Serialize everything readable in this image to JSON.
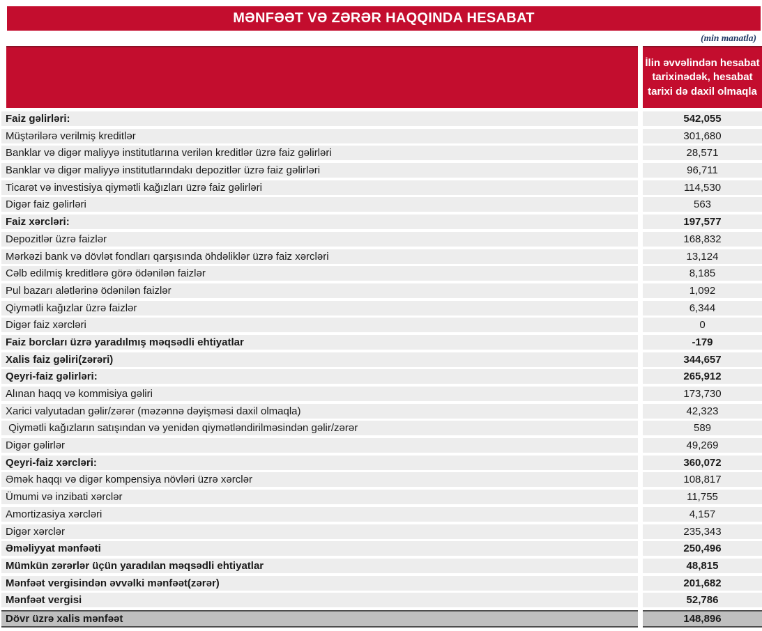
{
  "title": "MƏNFƏƏT VƏ ZƏRƏR HAQQINDA HESABAT",
  "unit_note": "(min manatla)",
  "colors": {
    "accent": "#c30d2e",
    "accent_dark": "#8c1127",
    "row_bg": "#ededed",
    "total_bg": "#bfbfbf",
    "note_color": "#1f3864"
  },
  "table": {
    "value_header": "İlin əvvəlindən hesabat tarixinədək, hesabat tarixi də daxil olmaqla",
    "rows": [
      {
        "label": "Faiz gəlirləri:",
        "value": "542,055",
        "bold": true
      },
      {
        "label": "Müştərilərə verilmiş kreditlər",
        "value": "301,680",
        "bold": false
      },
      {
        "label": "Banklar və digər maliyyə institutlarına verilən kreditlər üzrə faiz gəlirləri",
        "value": "28,571",
        "bold": false
      },
      {
        "label": "Banklar və digər maliyyə institutlarındakı depozitlər üzrə faiz gəlirləri",
        "value": "96,711",
        "bold": false
      },
      {
        "label": "Ticarət və investisiya qiymətli kağızları üzrə faiz gəlirləri",
        "value": "114,530",
        "bold": false
      },
      {
        "label": "Digər faiz gəlirləri",
        "value": "563",
        "bold": false
      },
      {
        "label": "Faiz xərcləri:",
        "value": "197,577",
        "bold": true
      },
      {
        "label": "Depozitlər üzrə faizlər",
        "value": "168,832",
        "bold": false
      },
      {
        "label": "Mərkəzi bank və dövlət fondları qarşısında öhdəliklər üzrə faiz xərcləri",
        "value": "13,124",
        "bold": false
      },
      {
        "label": "Cəlb edilmiş kreditlərə görə ödənilən faizlər",
        "value": "8,185",
        "bold": false
      },
      {
        "label": "Pul bazarı alətlərinə ödənilən faizlər",
        "value": "1,092",
        "bold": false
      },
      {
        "label": "Qiymətli kağızlar üzrə faizlər",
        "value": "6,344",
        "bold": false
      },
      {
        "label": "Digər faiz xərcləri",
        "value": "0",
        "bold": false
      },
      {
        "label": "Faiz borcları üzrə yaradılmış məqsədli ehtiyatlar",
        "value": "-179",
        "bold": true
      },
      {
        "label": "Xalis faiz gəliri(zərəri)",
        "value": "344,657",
        "bold": true
      },
      {
        "label": "Qeyri-faiz gəlirləri:",
        "value": "265,912",
        "bold": true
      },
      {
        "label": "Alınan haqq və kommisiya gəliri",
        "value": "173,730",
        "bold": false
      },
      {
        "label": "Xarici valyutadan gəlir/zərər (məzənnə dəyişməsi daxil olmaqla)",
        "value": "42,323",
        "bold": false
      },
      {
        "label": " Qiymətli kağızların satışından və yenidən qiymətləndirilməsindən gəlir/zərər",
        "value": "589",
        "bold": false
      },
      {
        "label": "Digər gəlirlər",
        "value": "49,269",
        "bold": false
      },
      {
        "label": "Qeyri-faiz xərcləri:",
        "value": "360,072",
        "bold": true
      },
      {
        "label": "Əmək haqqı və digər kompensiya növləri üzrə xərclər",
        "value": "108,817",
        "bold": false
      },
      {
        "label": "Ümumi və inzibati xərclər",
        "value": "11,755",
        "bold": false
      },
      {
        "label": "Amortizasiya xərcləri",
        "value": "4,157",
        "bold": false
      },
      {
        "label": "Digər xərclər",
        "value": "235,343",
        "bold": false
      },
      {
        "label": "Əməliyyat mənfəəti",
        "value": "250,496",
        "bold": true
      },
      {
        "label": "Mümkün zərərlər üçün yaradılan məqsədli ehtiyatlar",
        "value": "48,815",
        "bold": true
      },
      {
        "label": "Mənfəət vergisindən əvvəlki mənfəət(zərər)",
        "value": "201,682",
        "bold": true
      },
      {
        "label": "Mənfəət vergisi",
        "value": "52,786",
        "bold": true
      },
      {
        "label": "Dövr üzrə xalis mənfəət",
        "value": "148,896",
        "bold": true,
        "total": true
      }
    ]
  }
}
